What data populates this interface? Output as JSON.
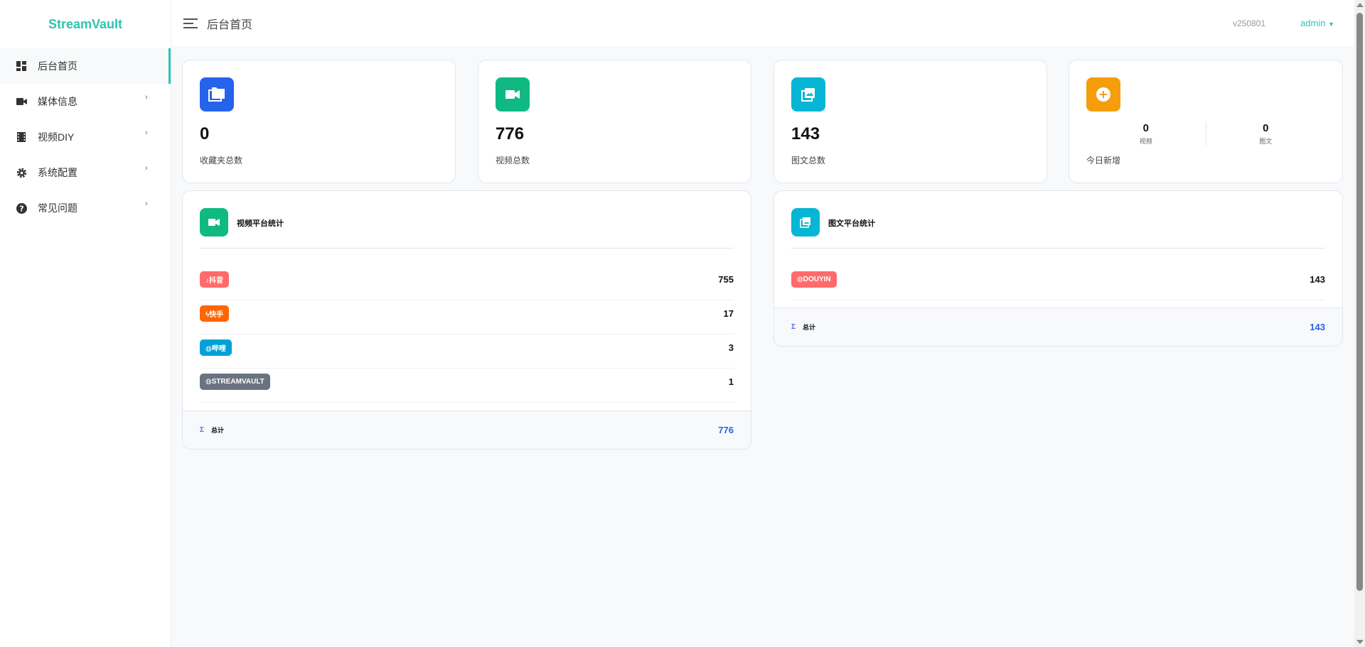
{
  "app": {
    "name": "StreamVault",
    "version": "v250801",
    "user": "admin"
  },
  "header": {
    "title": "后台首页"
  },
  "sidebar": {
    "items": [
      {
        "label": "后台首页",
        "icon": "dashboard-icon",
        "active": true
      },
      {
        "label": "媒体信息",
        "icon": "video-camera-icon",
        "chevron": "›"
      },
      {
        "label": "视频DIY",
        "icon": "film-icon",
        "chevron": "›"
      },
      {
        "label": "系统配置",
        "icon": "gear-icon",
        "chevron": "›"
      },
      {
        "label": "常见问题",
        "icon": "question-circle-icon",
        "chevron": "›"
      }
    ]
  },
  "stats": [
    {
      "value": "0",
      "label": "收藏夹总数",
      "icon": "folder-icon",
      "color": "#2563eb"
    },
    {
      "value": "776",
      "label": "视频总数",
      "icon": "video-camera-icon",
      "color": "#10b981"
    },
    {
      "value": "143",
      "label": "图文总数",
      "icon": "image-icon",
      "color": "#06b6d4"
    },
    {
      "label": "今日新增",
      "icon": "plus-circle-icon",
      "color": "#f59e0b",
      "video_value": "0",
      "video_label": "视频",
      "image_value": "0",
      "image_label": "图文"
    }
  ],
  "video_platforms": {
    "title": "视频平台统计",
    "rows": [
      {
        "label": "♪抖音",
        "value": "755",
        "color": "#ff6b6b"
      },
      {
        "label": "ϟ快手",
        "value": "17",
        "color": "#ff6600"
      },
      {
        "label": "◍哔哩",
        "value": "3",
        "color": "#00a1d6"
      },
      {
        "label": "◍STREAMVAULT",
        "value": "1",
        "color": "#6b7280"
      }
    ],
    "total_label": "总计",
    "total_value": "776",
    "sigma": "Σ"
  },
  "image_platforms": {
    "title": "图文平台统计",
    "rows": [
      {
        "label": "◍DOUYIN",
        "value": "143",
        "color": "#ff6b6b"
      }
    ],
    "total_label": "总计",
    "total_value": "143",
    "sigma": "Σ"
  }
}
